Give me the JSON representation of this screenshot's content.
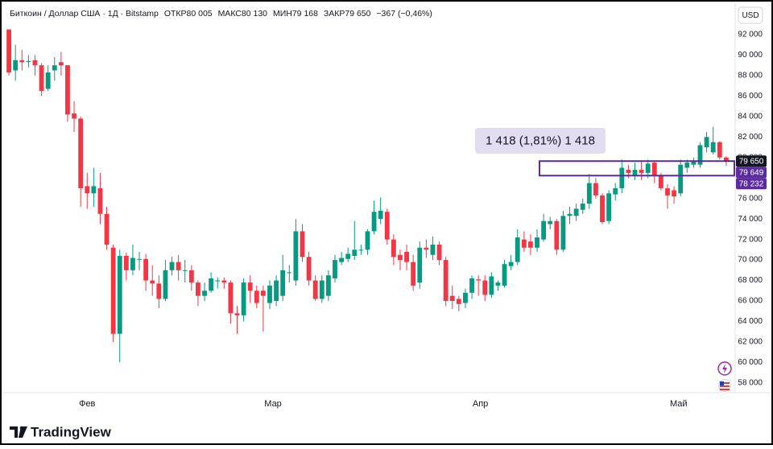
{
  "header": {
    "symbol": "Биткоин / Доллар США · 1Д · Bitstamp",
    "open_label": "ОТКР",
    "open": "80 005",
    "high_label": "МАКС",
    "high": "80 130",
    "low_label": "МИН",
    "low": "79 168",
    "close_label": "ЗАКР",
    "close": "79 650",
    "change": "−367 (−0,46%)"
  },
  "currency_button": "USD",
  "footer_brand": "TradingView",
  "chart_data": {
    "type": "candlestick",
    "up_color": "#089981",
    "down_color": "#f23645",
    "open": [
      92500,
      88500,
      89500,
      89400,
      89500,
      89000,
      86700,
      88500,
      89300,
      89000,
      84300,
      83800,
      77200,
      76500,
      77000,
      74500,
      71200,
      62800,
      70400,
      69000,
      70100,
      70100,
      68000,
      67700,
      66200,
      69000,
      69800,
      69000,
      69000,
      67800,
      66500,
      67000,
      68000,
      68000,
      67800,
      64800,
      64600,
      67800,
      67000,
      67000,
      65800,
      66000,
      66500,
      68800,
      68000,
      72800,
      70300,
      68000,
      66200,
      66500,
      68200,
      69800,
      70100,
      70400,
      71000,
      71000,
      72800,
      74000,
      74700,
      72000,
      70500,
      70800,
      69800,
      67800,
      71200,
      70500,
      71500,
      70000,
      66500,
      66200,
      65800,
      66800,
      68100,
      68000,
      66600,
      67500,
      67500,
      69400,
      69800,
      72000,
      71800,
      71200,
      72000,
      73500,
      73800,
      71000,
      74300,
      74300,
      74900,
      75500,
      77500,
      76300,
      73800,
      76400,
      77000,
      78800,
      78300,
      78800,
      78500,
      79500,
      78300,
      77000,
      76800,
      76500,
      79000,
      79300,
      79300,
      81000,
      80500,
      81500,
      80005
    ],
    "high": [
      92500,
      91000,
      90500,
      90000,
      90000,
      89200,
      89000,
      89800,
      90300,
      89000,
      85500,
      84000,
      78500,
      79000,
      78500,
      75200,
      71500,
      71000,
      70700,
      71500,
      70800,
      70600,
      69500,
      68500,
      70000,
      70300,
      70500,
      70000,
      69500,
      68000,
      67800,
      68800,
      68300,
      68300,
      68000,
      65500,
      68200,
      68500,
      67500,
      67500,
      68000,
      68500,
      70500,
      69500,
      74000,
      73500,
      70800,
      68500,
      68500,
      69000,
      70500,
      70800,
      71200,
      73800,
      71500,
      73000,
      75800,
      76100,
      75000,
      72500,
      71000,
      71500,
      70500,
      71800,
      72000,
      72300,
      71800,
      70300,
      67500,
      66500,
      67200,
      68500,
      68500,
      68500,
      68800,
      68000,
      70000,
      70500,
      73000,
      72800,
      72500,
      73000,
      74500,
      74200,
      74000,
      74800,
      75200,
      75500,
      76000,
      78400,
      78000,
      76500,
      76800,
      77500,
      79800,
      79300,
      79500,
      79600,
      79800,
      79600,
      78500,
      77400,
      77200,
      79800,
      79800,
      80000,
      81500,
      82500,
      83000,
      81600,
      80130
    ],
    "low": [
      88000,
      87500,
      88500,
      88800,
      88000,
      86000,
      86500,
      87500,
      88000,
      83500,
      82500,
      75200,
      75000,
      75200,
      73500,
      71000,
      62000,
      60000,
      68000,
      68500,
      69000,
      67000,
      66500,
      65300,
      66000,
      68500,
      68000,
      67800,
      67000,
      65500,
      66000,
      66800,
      67200,
      67200,
      63800,
      62800,
      64000,
      65800,
      65300,
      63000,
      65200,
      65500,
      66000,
      67800,
      67500,
      69800,
      67500,
      66000,
      65800,
      66000,
      67800,
      69500,
      69800,
      70000,
      70500,
      70500,
      72500,
      73500,
      71500,
      69500,
      69000,
      69000,
      67000,
      67200,
      70200,
      70000,
      69500,
      65500,
      65200,
      65000,
      65300,
      66200,
      66500,
      66000,
      66300,
      67000,
      67300,
      69000,
      69500,
      70800,
      70500,
      70800,
      71800,
      73000,
      70500,
      70800,
      73500,
      73800,
      74500,
      75000,
      76000,
      73500,
      73500,
      75800,
      76500,
      78000,
      77800,
      77800,
      78000,
      77500,
      76800,
      75000,
      75500,
      76200,
      78500,
      79000,
      79000,
      80500,
      80300,
      79800,
      79168
    ],
    "close": [
      88300,
      89500,
      89300,
      89400,
      89000,
      86500,
      88300,
      89000,
      89000,
      84200,
      83800,
      77000,
      76500,
      77200,
      74500,
      71500,
      62800,
      70400,
      69000,
      70200,
      70100,
      68000,
      67700,
      66200,
      69000,
      69800,
      69000,
      69000,
      67800,
      66500,
      67000,
      68200,
      68000,
      67800,
      64800,
      64600,
      67800,
      67000,
      65800,
      66500,
      67500,
      68000,
      69000,
      68800,
      72800,
      70300,
      68000,
      66200,
      68000,
      68500,
      70000,
      70200,
      70600,
      71000,
      71000,
      72800,
      74700,
      74800,
      72000,
      70300,
      70000,
      69800,
      67500,
      71200,
      71000,
      71500,
      70000,
      66000,
      66000,
      65700,
      66800,
      68200,
      68000,
      66600,
      68400,
      67800,
      69600,
      69800,
      72200,
      71200,
      71200,
      72200,
      73800,
      73800,
      71000,
      74300,
      74500,
      75000,
      75500,
      77500,
      76300,
      73700,
      76500,
      77000,
      79000,
      78500,
      78800,
      78500,
      79400,
      78300,
      77000,
      76300,
      76200,
      79300,
      79500,
      79600,
      81200,
      82000,
      81500,
      80000,
      79650
    ],
    "xlim": [
      -0.75,
      111.25
    ],
    "xticks": [
      {
        "value": 12,
        "label": "Фев"
      },
      {
        "value": 40.5,
        "label": "Мар"
      },
      {
        "value": 72.3,
        "label": "Апр"
      },
      {
        "value": 102.7,
        "label": "Май"
      }
    ],
    "ylim": [
      57050,
      94900
    ],
    "yticks": [
      {
        "value": 58000,
        "label": "58 000"
      },
      {
        "value": 60000,
        "label": "60 000"
      },
      {
        "value": 62000,
        "label": "62 000"
      },
      {
        "value": 64000,
        "label": "64 000"
      },
      {
        "value": 66000,
        "label": "66 000"
      },
      {
        "value": 68000,
        "label": "68 000"
      },
      {
        "value": 70000,
        "label": "70 000"
      },
      {
        "value": 72000,
        "label": "72 000"
      },
      {
        "value": 74000,
        "label": "74 000"
      },
      {
        "value": 76000,
        "label": "76 000"
      },
      {
        "value": 78000,
        "label": "78 000"
      },
      {
        "value": 80000,
        "label": "80 000"
      },
      {
        "value": 82000,
        "label": "82 000"
      },
      {
        "value": 84000,
        "label": "84 000"
      },
      {
        "value": 86000,
        "label": "86 000"
      },
      {
        "value": 88000,
        "label": "88 000"
      },
      {
        "value": 90000,
        "label": "90 000"
      },
      {
        "value": 92000,
        "label": "92 000"
      }
    ],
    "last_price": {
      "value": 79650,
      "label": "79 650"
    },
    "price_range": {
      "top": {
        "value": 79649,
        "label": "79 649"
      },
      "bottom": {
        "value": 78232,
        "label": "78 232"
      },
      "label": "1 418 (1,81%) 1 418",
      "color": "#5b2c9e"
    }
  }
}
